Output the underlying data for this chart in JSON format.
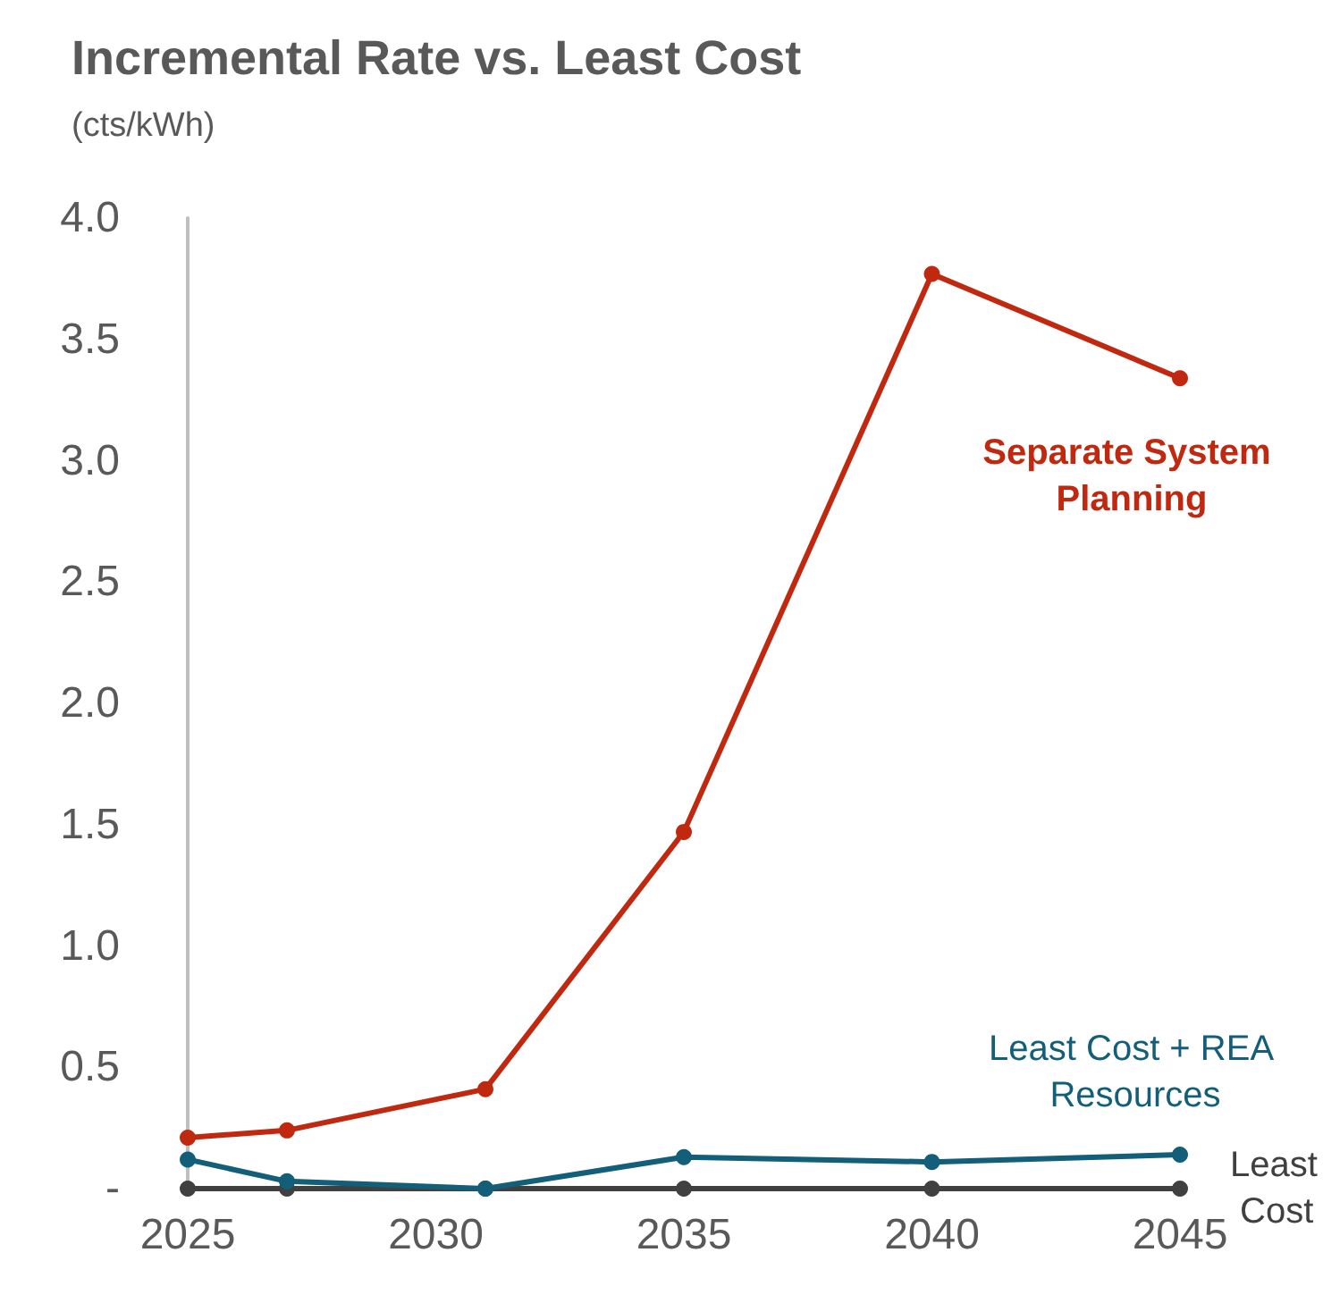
{
  "chart_data": {
    "type": "line",
    "title": "Incremental Rate vs. Least Cost",
    "subtitle": "(cts/kWh)",
    "x": [
      2025,
      2027,
      2031,
      2035,
      2040,
      2045
    ],
    "series": [
      {
        "name": "Separate System Planning",
        "color": "#c0280f",
        "values": [
          0.21,
          0.24,
          0.41,
          1.47,
          3.77,
          3.34
        ]
      },
      {
        "name": "Least Cost + REA Resources",
        "color": "#135e78",
        "values": [
          0.12,
          0.03,
          0,
          0.13,
          0.11,
          0.14
        ]
      },
      {
        "name": "Least Cost",
        "color": "#404040",
        "values": [
          0,
          0,
          0,
          0,
          0,
          0
        ]
      }
    ],
    "xlim": [
      2025,
      2045
    ],
    "xticks": [
      2025,
      2030,
      2035,
      2040,
      2045
    ],
    "ylim": [
      0,
      4
    ],
    "yticks": [
      {
        "value": 0,
        "label": "-"
      },
      0.5,
      {
        "value": 1,
        "label": "1.0"
      },
      1.5,
      {
        "value": 2,
        "label": "2.0"
      },
      2.5,
      {
        "value": 3,
        "label": "3.0"
      },
      3.5,
      {
        "value": 4,
        "label": "4.0"
      }
    ],
    "grid": false,
    "legend": false,
    "marker": "circle",
    "line_style": "solid"
  }
}
